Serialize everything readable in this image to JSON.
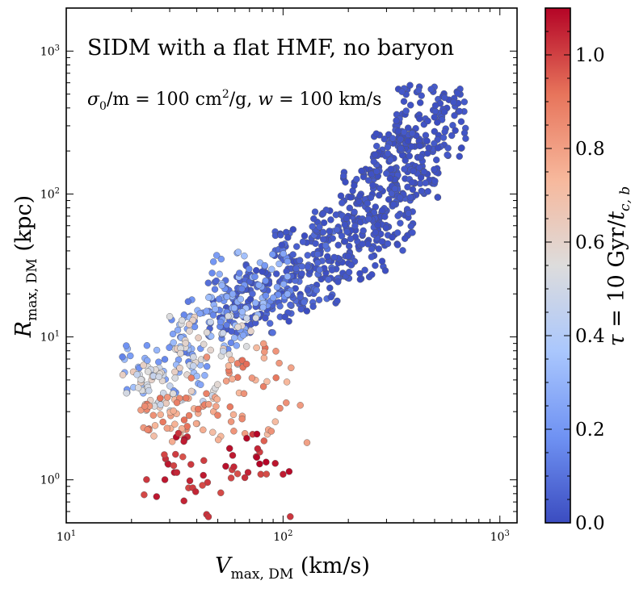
{
  "colors": {
    "frame": "#000000",
    "marker_edge": "#555555",
    "cmap": [
      "#3b4cc0",
      "#6f92f3",
      "#aac7fd",
      "#dddcdc",
      "#f7b89c",
      "#e7745b",
      "#b40426"
    ]
  },
  "chart_data": {
    "type": "scatter",
    "title": "SIDM with a flat HMF, no baryon",
    "subtitle_parts": {
      "sigma": "σ",
      "sub0": "0",
      "per_m": "/m = 100 cm",
      "sup2": "2",
      "per_g": "/g,  ",
      "w": "w",
      "w_rest": " = 100 km/s"
    },
    "xlabel": {
      "main": "V",
      "sub": "max, DM",
      "unit": "  (km/s)"
    },
    "ylabel": {
      "main": "R",
      "sub": "max, DM",
      "unit": "  (kpc)"
    },
    "xscale": "log",
    "yscale": "log",
    "xlim": [
      10,
      1200
    ],
    "ylim": [
      0.5,
      2000
    ],
    "x_ticks": [
      {
        "value": 10,
        "base": "10",
        "exp": "1"
      },
      {
        "value": 100,
        "base": "10",
        "exp": "2"
      },
      {
        "value": 1000,
        "base": "10",
        "exp": "3"
      }
    ],
    "y_ticks": [
      {
        "value": 1,
        "base": "10",
        "exp": "0"
      },
      {
        "value": 10,
        "base": "10",
        "exp": "1"
      },
      {
        "value": 100,
        "base": "10",
        "exp": "2"
      },
      {
        "value": 1000,
        "base": "10",
        "exp": "3"
      }
    ],
    "colorbar": {
      "label": {
        "tau": "τ",
        "eq": " = 10 Gyr/",
        "t": "t",
        "sub": "c, b"
      },
      "range": [
        0,
        1.1
      ],
      "ticks": [
        "0.0",
        "0.2",
        "0.4",
        "0.6",
        "0.8",
        "1.0"
      ]
    },
    "points_note": "approx. 1000 halos; bands of the cloud as read from the figure",
    "groups": [
      {
        "x": [
          [
            330,
            700
          ],
          [
            260,
            520
          ],
          [
            180,
            400
          ],
          [
            130,
            300
          ]
        ],
        "y": [
          [
            180,
            580
          ],
          [
            90,
            280
          ],
          [
            40,
            150
          ],
          [
            25,
            80
          ]
        ],
        "c": [
          0.0,
          0.04
        ],
        "n": [
          110,
          130,
          140,
          110
        ]
      },
      {
        "x": [
          [
            90,
            180
          ],
          [
            60,
            130
          ],
          [
            45,
            90
          ]
        ],
        "y": [
          [
            16,
            60
          ],
          [
            12,
            35
          ],
          [
            10,
            25
          ]
        ],
        "c": [
          0.0,
          0.1
        ],
        "n": [
          100,
          80,
          60
        ]
      },
      {
        "x": [
          [
            45,
            110
          ],
          [
            30,
            70
          ],
          [
            18,
            45
          ]
        ],
        "y": [
          [
            14,
            40
          ],
          [
            8,
            20
          ],
          [
            4,
            9
          ]
        ],
        "c": [
          0.12,
          0.35
        ],
        "n": [
          70,
          55,
          45
        ]
      },
      {
        "x": [
          [
            30,
            75
          ],
          [
            22,
            50
          ],
          [
            18,
            35
          ]
        ],
        "y": [
          [
            6,
            14
          ],
          [
            3.5,
            8
          ],
          [
            3,
            6
          ]
        ],
        "c": [
          0.45,
          0.65
        ],
        "n": [
          40,
          35,
          25
        ]
      },
      {
        "x": [
          [
            35,
            110
          ],
          [
            22,
            60
          ],
          [
            25,
            130
          ]
        ],
        "y": [
          [
            4,
            9
          ],
          [
            2.2,
            4
          ],
          [
            1.8,
            3.5
          ]
        ],
        "c": [
          0.7,
          0.95
        ],
        "n": [
          30,
          40,
          30
        ]
      },
      {
        "x": [
          [
            22,
            110
          ],
          [
            22,
            80
          ],
          [
            25,
            90
          ]
        ],
        "y": [
          [
            0.55,
            2
          ],
          [
            0.8,
            1.5
          ],
          [
            1.2,
            2.2
          ]
        ],
        "c": [
          0.97,
          1.1
        ],
        "n": [
          25,
          15,
          15
        ]
      }
    ]
  }
}
